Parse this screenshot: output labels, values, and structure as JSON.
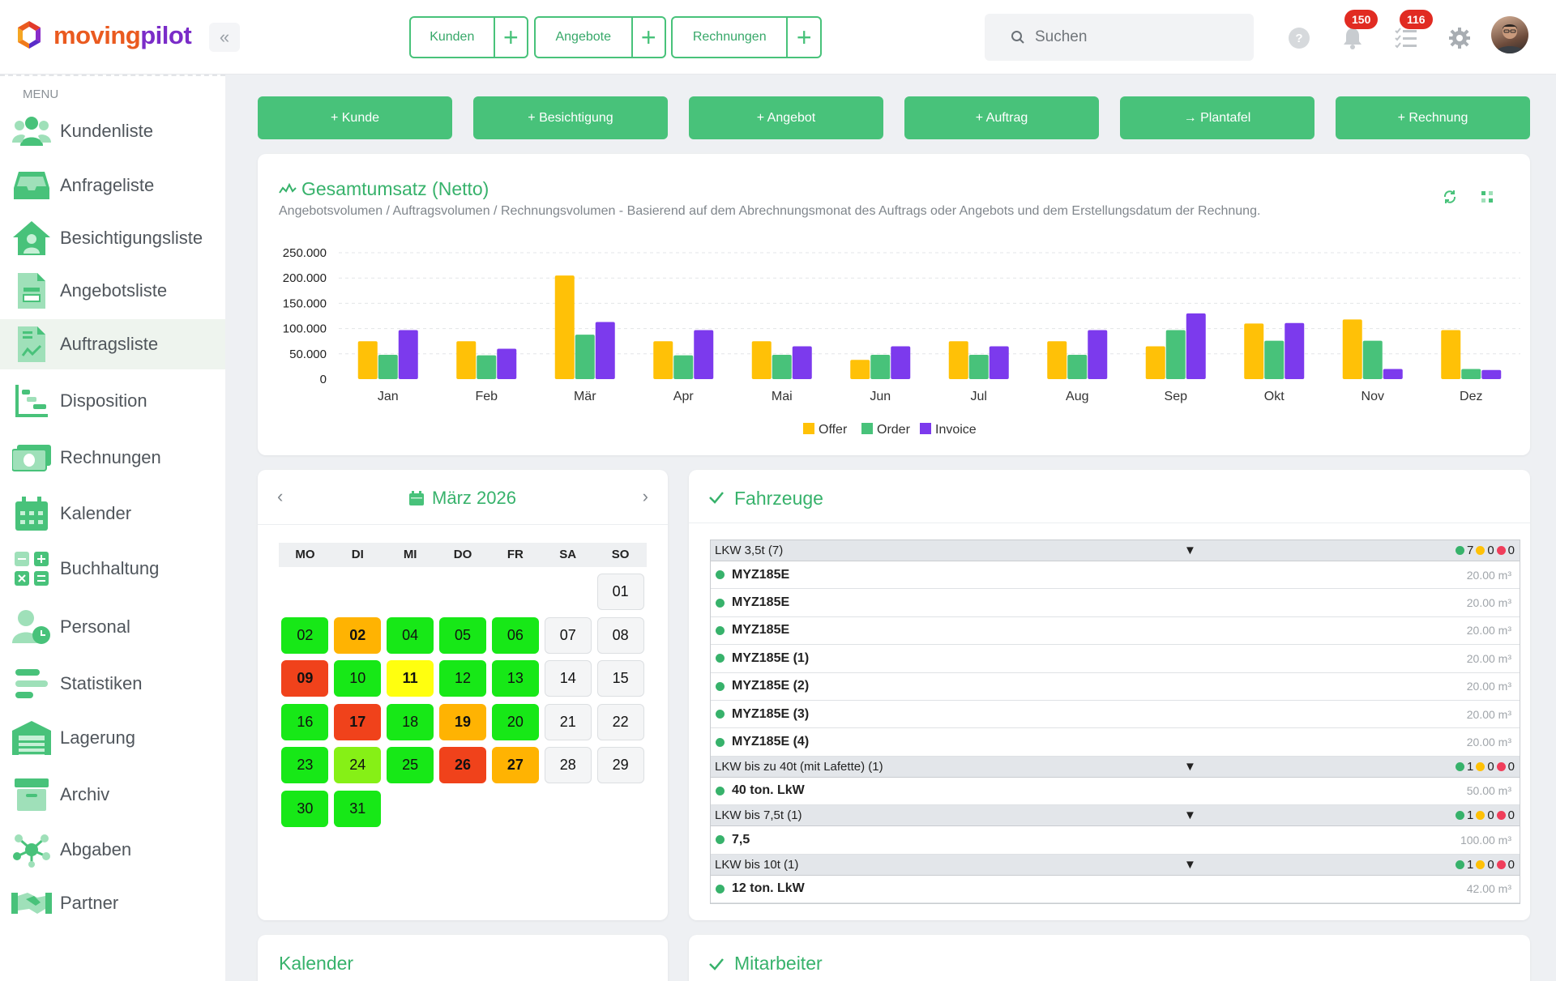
{
  "brand": {
    "logo_text_a": "moving",
    "logo_text_b": "pilot"
  },
  "header": {
    "collapse_icon": "«",
    "quick_actions": [
      {
        "label": "Kunden"
      },
      {
        "label": "Angebote"
      },
      {
        "label": "Rechnungen"
      }
    ],
    "search_placeholder": "Suchen",
    "notifications_count": "150",
    "tasks_count": "116"
  },
  "sidebar": {
    "menu_title": "MENU",
    "items": [
      {
        "label": "Kundenliste",
        "icon": "users-icon"
      },
      {
        "label": "Anfrageliste",
        "icon": "inbox-icon"
      },
      {
        "label": "Besichtigungsliste",
        "icon": "house-user-icon"
      },
      {
        "label": "Angebotsliste",
        "icon": "offer-document-icon"
      },
      {
        "label": "Auftragsliste",
        "icon": "order-document-icon"
      },
      {
        "label": "Disposition",
        "icon": "gantt-icon"
      },
      {
        "label": "Rechnungen",
        "icon": "money-icon"
      },
      {
        "label": "Kalender",
        "icon": "calendar-icon"
      },
      {
        "label": "Buchhaltung",
        "icon": "calculator-icon"
      },
      {
        "label": "Personal",
        "icon": "person-clock-icon"
      },
      {
        "label": "Statistiken",
        "icon": "bars-icon"
      },
      {
        "label": "Lagerung",
        "icon": "warehouse-icon"
      },
      {
        "label": "Archiv",
        "icon": "archive-icon"
      },
      {
        "label": "Abgaben",
        "icon": "network-icon"
      },
      {
        "label": "Partner",
        "icon": "handshake-icon"
      }
    ],
    "active_item": "Auftragsliste"
  },
  "actions": [
    {
      "label": "+ Kunde"
    },
    {
      "label": "+ Besichtigung"
    },
    {
      "label": "+ Angebot"
    },
    {
      "label": "+ Auftrag"
    },
    {
      "label": "→ Plantafel"
    },
    {
      "label": "+ Rechnung"
    }
  ],
  "revenue_card": {
    "title": "Gesamtumsatz (Netto)",
    "subtitle": "Angebotsvolumen / Auftragsvolumen / Rechnungsvolumen - Basierend auf dem Abrechnungsmonat des Auftrags oder Angebots und dem Erstellungsdatum der Rechnung."
  },
  "chart_data": {
    "type": "bar",
    "categories": [
      "Jan",
      "Feb",
      "Mär",
      "Apr",
      "Mai",
      "Jun",
      "Jul",
      "Aug",
      "Sep",
      "Okt",
      "Nov",
      "Dez"
    ],
    "series": [
      {
        "name": "Offer",
        "color": "#ffc107",
        "values": [
          75000,
          75000,
          205000,
          75000,
          75000,
          38000,
          75000,
          75000,
          65000,
          110000,
          118000,
          97000
        ]
      },
      {
        "name": "Order",
        "color": "#48c27a",
        "values": [
          48000,
          47000,
          88000,
          47000,
          48000,
          48000,
          48000,
          48000,
          97000,
          76000,
          76000,
          20000
        ]
      },
      {
        "name": "Invoice",
        "color": "#7c3aed",
        "values": [
          97000,
          60000,
          113000,
          97000,
          65000,
          65000,
          65000,
          97000,
          130000,
          111000,
          20000,
          18000
        ]
      }
    ],
    "y_ticks": [
      "250.000",
      "200.000",
      "150.000",
      "100.000",
      "50.000",
      "0"
    ],
    "ylim": [
      0,
      250000
    ],
    "grid": true,
    "legend": "bottom"
  },
  "calendar": {
    "month_label": "März 2026",
    "weekdays": [
      "MO",
      "DI",
      "MI",
      "DO",
      "FR",
      "SA",
      "SO"
    ],
    "days": [
      {
        "label": "01",
        "status": "none"
      },
      {
        "label": "02",
        "status": "green"
      },
      {
        "label": "02",
        "status": "orange"
      },
      {
        "label": "04",
        "status": "green"
      },
      {
        "label": "05",
        "status": "green"
      },
      {
        "label": "06",
        "status": "green"
      },
      {
        "label": "07",
        "status": "none"
      },
      {
        "label": "08",
        "status": "none"
      },
      {
        "label": "09",
        "status": "red"
      },
      {
        "label": "10",
        "status": "green"
      },
      {
        "label": "11",
        "status": "yellow"
      },
      {
        "label": "12",
        "status": "green"
      },
      {
        "label": "13",
        "status": "green"
      },
      {
        "label": "14",
        "status": "none"
      },
      {
        "label": "15",
        "status": "none"
      },
      {
        "label": "16",
        "status": "green"
      },
      {
        "label": "17",
        "status": "red"
      },
      {
        "label": "18",
        "status": "green"
      },
      {
        "label": "19",
        "status": "orange"
      },
      {
        "label": "20",
        "status": "green"
      },
      {
        "label": "21",
        "status": "none"
      },
      {
        "label": "22",
        "status": "none"
      },
      {
        "label": "23",
        "status": "green"
      },
      {
        "label": "24",
        "status": "lime"
      },
      {
        "label": "25",
        "status": "green"
      },
      {
        "label": "26",
        "status": "red"
      },
      {
        "label": "27",
        "status": "orange"
      },
      {
        "label": "28",
        "status": "none"
      },
      {
        "label": "29",
        "status": "none"
      },
      {
        "label": "30",
        "status": "green"
      },
      {
        "label": "31",
        "status": "green"
      }
    ],
    "status_colors": {
      "green": "#17e817",
      "orange": "#ffb302",
      "red": "#f0421b",
      "yellow": "#ffff0f",
      "lime": "#86f016",
      "none": "#f4f5f6"
    }
  },
  "vehicles": {
    "title": "Fahrzeuge",
    "groups": [
      {
        "name": "LKW 3,5t (7)",
        "counts": [
          "7",
          "0",
          "0"
        ],
        "rows": [
          {
            "name": "MYZ185E",
            "volume": "20.00 m³"
          },
          {
            "name": "MYZ185E",
            "volume": "20.00 m³"
          },
          {
            "name": "MYZ185E",
            "volume": "20.00 m³"
          },
          {
            "name": "MYZ185E (1)",
            "volume": "20.00 m³"
          },
          {
            "name": "MYZ185E (2)",
            "volume": "20.00 m³"
          },
          {
            "name": "MYZ185E (3)",
            "volume": "20.00 m³"
          },
          {
            "name": "MYZ185E (4)",
            "volume": "20.00 m³"
          }
        ]
      },
      {
        "name": "LKW bis zu 40t (mit Lafette) (1)",
        "counts": [
          "1",
          "0",
          "0"
        ],
        "rows": [
          {
            "name": "40 ton. LkW",
            "volume": "50.00 m³"
          }
        ]
      },
      {
        "name": "LKW bis 7,5t (1)",
        "counts": [
          "1",
          "0",
          "0"
        ],
        "rows": [
          {
            "name": "7,5",
            "volume": "100.00 m³"
          }
        ]
      },
      {
        "name": "LKW bis 10t (1)",
        "counts": [
          "1",
          "0",
          "0"
        ],
        "rows": [
          {
            "name": "12 ton. LkW",
            "volume": "42.00 m³"
          }
        ]
      }
    ]
  },
  "bottom_cards": {
    "kalender_title": "Kalender",
    "mitarbeiter_title": "Mitarbeiter"
  },
  "colors": {
    "accent": "#48c27a",
    "accent_dark": "#37b26b",
    "badge": "#e12b22"
  }
}
